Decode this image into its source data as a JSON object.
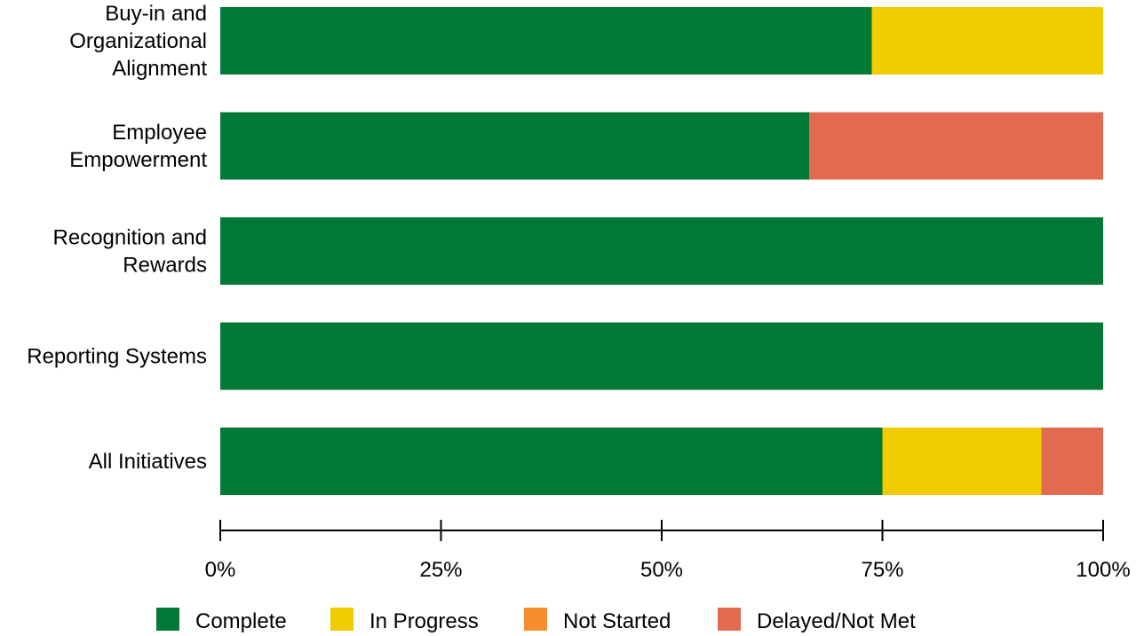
{
  "chart_data": {
    "type": "bar",
    "orientation": "horizontal",
    "stacked": true,
    "categories": [
      [
        "Buy-in and",
        "Organizational",
        "Alignment"
      ],
      [
        "Employee",
        "Empowerment"
      ],
      [
        "Recognition and",
        "Rewards"
      ],
      [
        "Reporting Systems"
      ],
      [
        "All Initiatives"
      ]
    ],
    "series": [
      {
        "name": "Complete",
        "color": "#027A36",
        "values": [
          73.8,
          66.7,
          100,
          100,
          75
        ]
      },
      {
        "name": "In Progress",
        "color": "#F0CC00",
        "values": [
          26.2,
          0,
          0,
          0,
          18
        ]
      },
      {
        "name": "Not Started",
        "color": "#F78E2D",
        "values": [
          0,
          0,
          0,
          0,
          0
        ]
      },
      {
        "name": "Delayed/Not Met",
        "color": "#E26A50",
        "values": [
          0,
          33.3,
          0,
          0,
          7
        ]
      }
    ],
    "xlim": [
      0,
      100
    ],
    "ticks": [
      0,
      25,
      50,
      75,
      100
    ],
    "tick_labels": [
      "0%",
      "25%",
      "50%",
      "75%",
      "100%"
    ],
    "grid": false,
    "legend_position": "bottom"
  }
}
